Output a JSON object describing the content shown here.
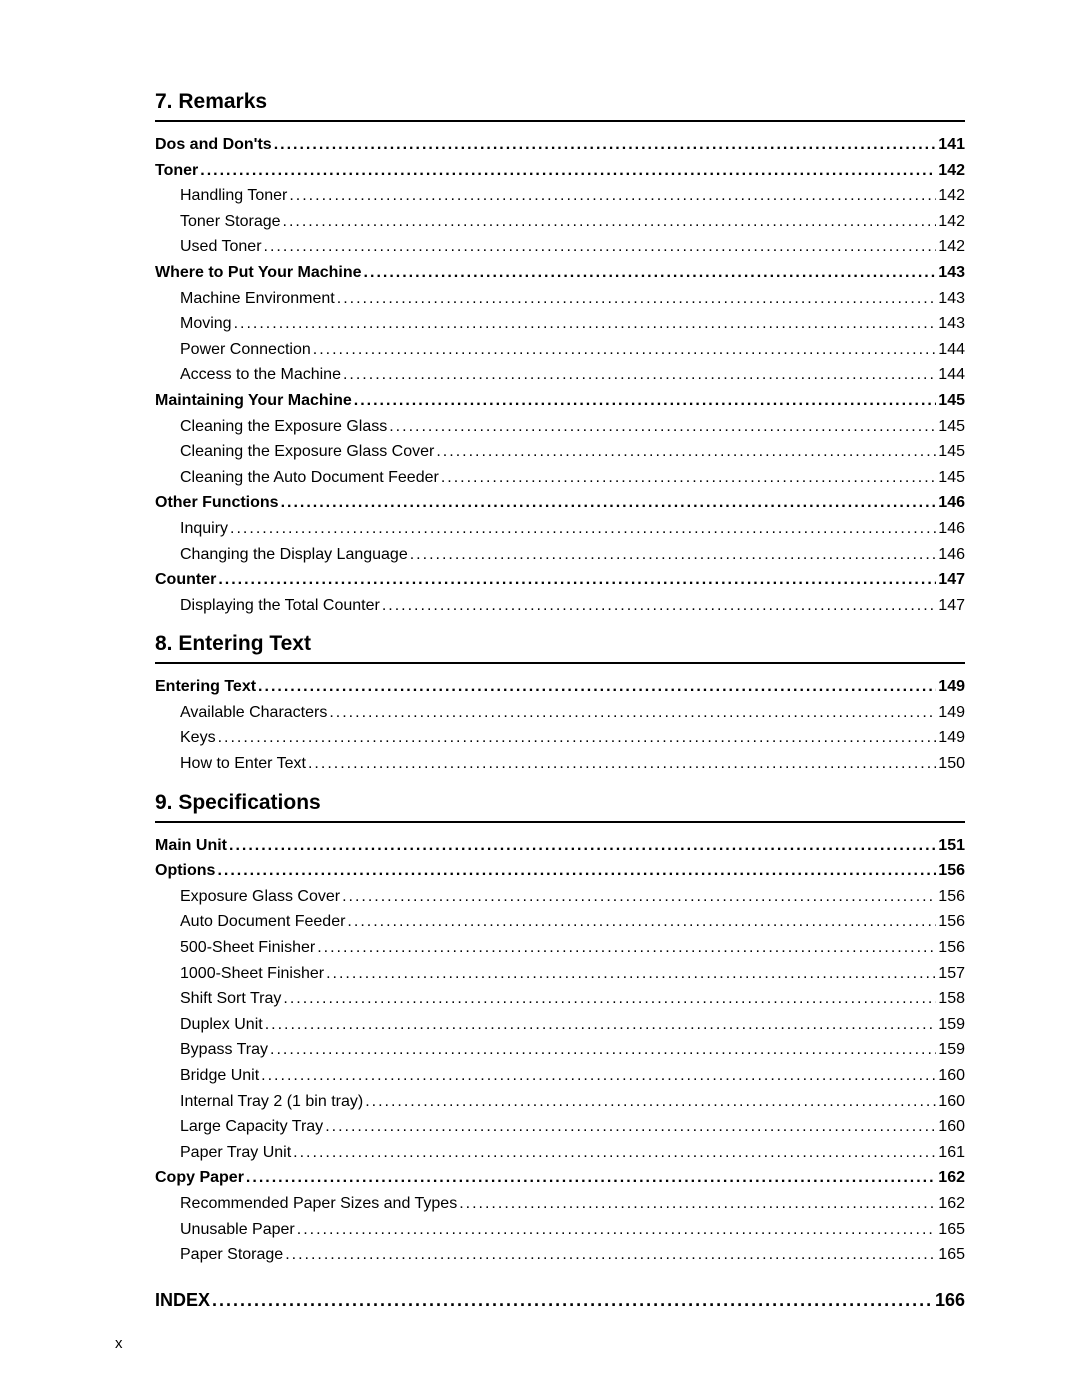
{
  "page_number_label": "x",
  "colors": {
    "background": "#ffffff",
    "text": "#000000",
    "rule": "#000000"
  },
  "typography": {
    "base_font_size": 16,
    "section_title_size": 21,
    "index_size": 18,
    "font_family": "Arial, Helvetica, sans-serif"
  },
  "sections": [
    {
      "title": "7. Remarks",
      "entries": [
        {
          "level": 0,
          "label": "Dos and Don'ts",
          "page": "141"
        },
        {
          "level": 0,
          "label": "Toner",
          "page": "142"
        },
        {
          "level": 1,
          "label": "Handling Toner",
          "page": "142"
        },
        {
          "level": 1,
          "label": "Toner Storage",
          "page": "142"
        },
        {
          "level": 1,
          "label": "Used Toner",
          "page": "142"
        },
        {
          "level": 0,
          "label": "Where to Put Your Machine",
          "page": "143"
        },
        {
          "level": 1,
          "label": "Machine Environment",
          "page": "143"
        },
        {
          "level": 1,
          "label": "Moving",
          "page": "143"
        },
        {
          "level": 1,
          "label": "Power Connection",
          "page": "144"
        },
        {
          "level": 1,
          "label": "Access to the Machine",
          "page": "144"
        },
        {
          "level": 0,
          "label": "Maintaining Your Machine",
          "page": "145"
        },
        {
          "level": 1,
          "label": "Cleaning the Exposure Glass",
          "page": "145"
        },
        {
          "level": 1,
          "label": "Cleaning the Exposure Glass Cover",
          "page": "145"
        },
        {
          "level": 1,
          "label": "Cleaning the Auto Document Feeder",
          "page": "145"
        },
        {
          "level": 0,
          "label": "Other Functions",
          "page": "146"
        },
        {
          "level": 1,
          "label": "Inquiry",
          "page": "146"
        },
        {
          "level": 1,
          "label": "Changing the Display Language",
          "page": "146"
        },
        {
          "level": 0,
          "label": "Counter",
          "page": "147"
        },
        {
          "level": 1,
          "label": "Displaying the Total Counter",
          "page": "147"
        }
      ]
    },
    {
      "title": "8. Entering Text",
      "entries": [
        {
          "level": 0,
          "label": "Entering Text",
          "page": "149"
        },
        {
          "level": 1,
          "label": "Available Characters",
          "page": "149"
        },
        {
          "level": 1,
          "label": "Keys",
          "page": "149"
        },
        {
          "level": 1,
          "label": "How to Enter Text",
          "page": "150"
        }
      ]
    },
    {
      "title": "9. Specifications",
      "entries": [
        {
          "level": 0,
          "label": "Main Unit",
          "page": "151"
        },
        {
          "level": 0,
          "label": "Options",
          "page": "156"
        },
        {
          "level": 1,
          "label": "Exposure Glass Cover",
          "page": "156"
        },
        {
          "level": 1,
          "label": "Auto Document Feeder",
          "page": "156"
        },
        {
          "level": 1,
          "label": "500-Sheet Finisher",
          "page": "156"
        },
        {
          "level": 1,
          "label": "1000-Sheet Finisher",
          "page": "157"
        },
        {
          "level": 1,
          "label": "Shift Sort Tray",
          "page": "158"
        },
        {
          "level": 1,
          "label": "Duplex Unit",
          "page": "159"
        },
        {
          "level": 1,
          "label": "Bypass Tray",
          "page": "159"
        },
        {
          "level": 1,
          "label": "Bridge Unit",
          "page": "160"
        },
        {
          "level": 1,
          "label": "Internal Tray 2 (1 bin tray)",
          "page": "160"
        },
        {
          "level": 1,
          "label": "Large Capacity Tray",
          "page": "160"
        },
        {
          "level": 1,
          "label": "Paper Tray Unit",
          "page": "161"
        },
        {
          "level": 0,
          "label": "Copy Paper",
          "page": "162"
        },
        {
          "level": 1,
          "label": "Recommended Paper Sizes and Types",
          "page": "162"
        },
        {
          "level": 1,
          "label": "Unusable Paper",
          "page": "165"
        },
        {
          "level": 1,
          "label": "Paper Storage",
          "page": "165"
        }
      ],
      "index": {
        "label": "INDEX",
        "page": "166"
      }
    }
  ]
}
